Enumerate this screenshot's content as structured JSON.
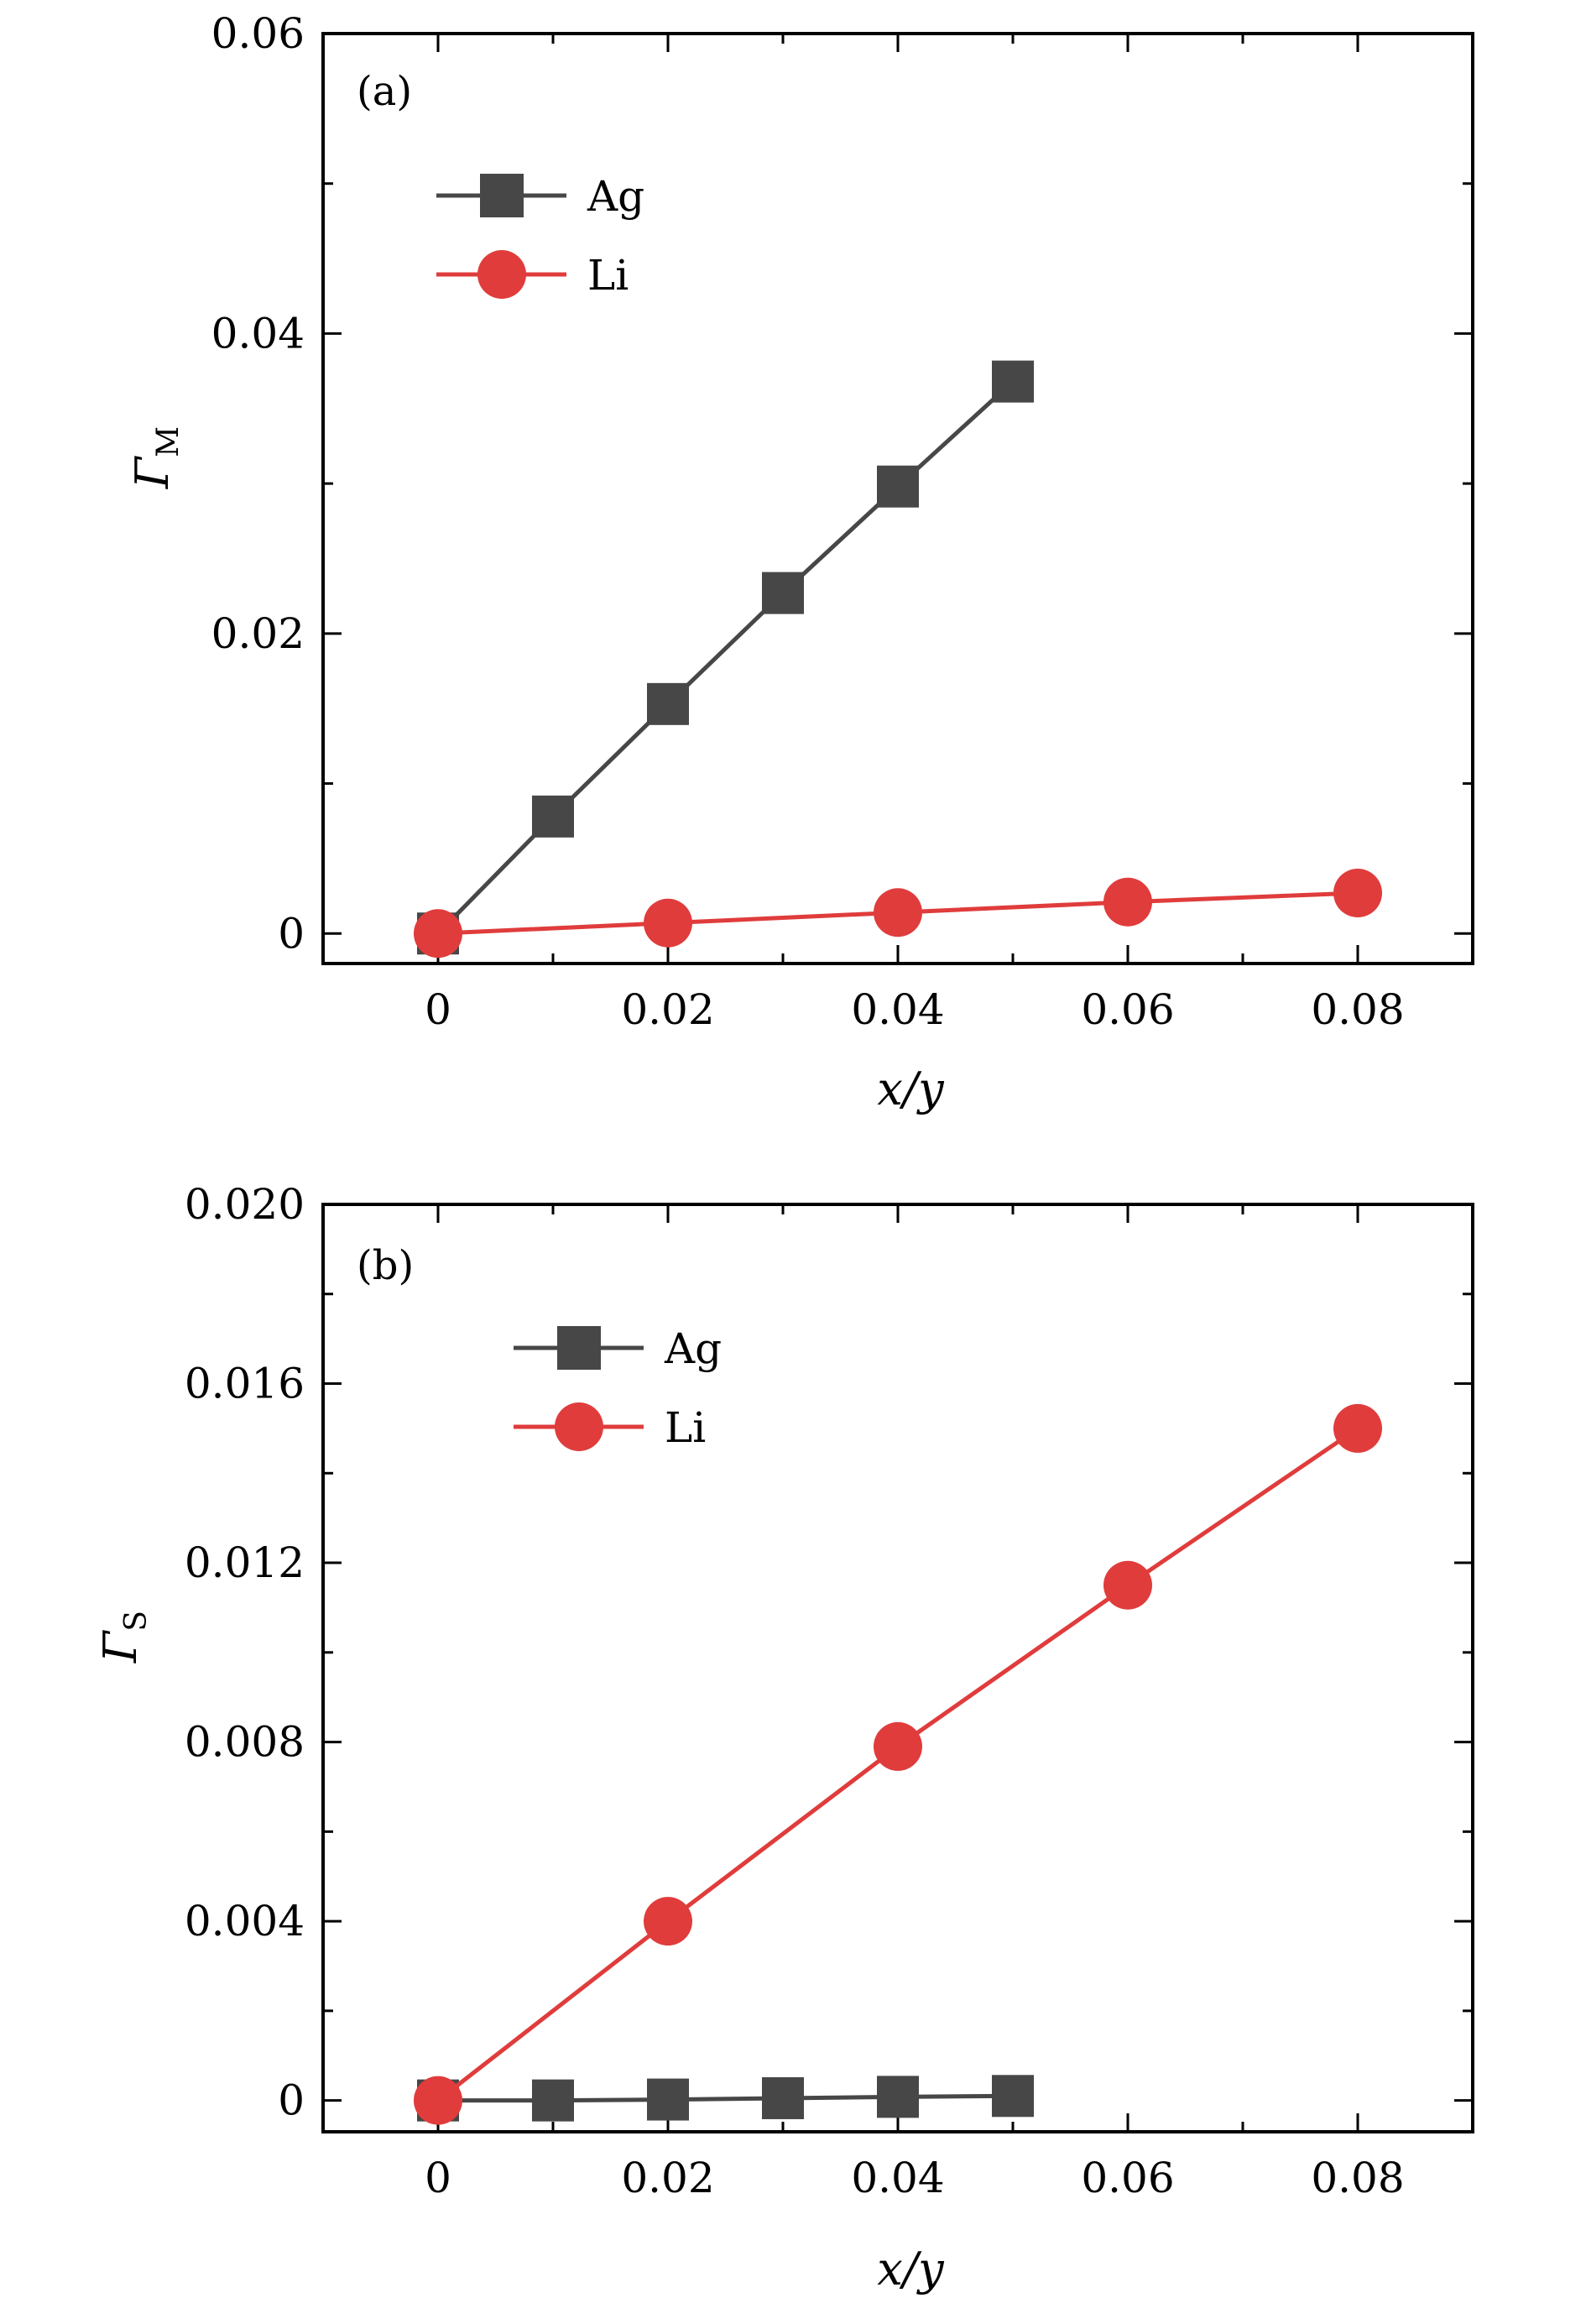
{
  "chart_data": [
    {
      "type": "line",
      "panel_label": "(a)",
      "xlabel": "x/y",
      "ylabel": "Γ",
      "ylabel_sub": "M",
      "xlim": [
        -0.01,
        0.09
      ],
      "ylim": [
        -0.002,
        0.06
      ],
      "xticks": [
        0,
        0.02,
        0.04,
        0.06,
        0.08
      ],
      "xtick_labels": [
        "0",
        "0.02",
        "0.04",
        "0.06",
        "0.08"
      ],
      "yticks": [
        0,
        0.02,
        0.04,
        0.06
      ],
      "ytick_labels": [
        "0",
        "0.02",
        "0.04",
        "0.06"
      ],
      "grid": false,
      "legend_position": "top-left",
      "series": [
        {
          "name": "Ag",
          "marker": "square",
          "color": "#474747",
          "x": [
            0,
            0.01,
            0.02,
            0.03,
            0.04,
            0.05
          ],
          "y": [
            0,
            0.0078,
            0.0153,
            0.0227,
            0.0298,
            0.0368
          ]
        },
        {
          "name": "Li",
          "marker": "circle",
          "color": "#e03c3c",
          "x": [
            0,
            0.02,
            0.04,
            0.06,
            0.08
          ],
          "y": [
            0,
            0.0007,
            0.0014,
            0.0021,
            0.0027
          ]
        }
      ]
    },
    {
      "type": "line",
      "panel_label": "(b)",
      "xlabel": "x/y",
      "ylabel": "Γ",
      "ylabel_sub": "S",
      "xlim": [
        -0.01,
        0.09
      ],
      "ylim": [
        -0.0007,
        0.02
      ],
      "xticks": [
        0,
        0.02,
        0.04,
        0.06,
        0.08
      ],
      "xtick_labels": [
        "0",
        "0.02",
        "0.04",
        "0.06",
        "0.08"
      ],
      "yticks": [
        0,
        0.004,
        0.008,
        0.012,
        0.016,
        0.02
      ],
      "ytick_labels": [
        "0",
        "0.004",
        "0.008",
        "0.012",
        "0.016",
        "0.020"
      ],
      "grid": false,
      "legend_position": "top-left",
      "series": [
        {
          "name": "Ag",
          "marker": "square",
          "color": "#474747",
          "x": [
            0,
            0.01,
            0.02,
            0.03,
            0.04,
            0.05
          ],
          "y": [
            0,
            0.0,
            2e-05,
            5e-05,
            8e-05,
            0.0001
          ]
        },
        {
          "name": "Li",
          "marker": "circle",
          "color": "#e03c3c",
          "x": [
            0,
            0.02,
            0.04,
            0.06,
            0.08
          ],
          "y": [
            0,
            0.004,
            0.0079,
            0.0115,
            0.015
          ]
        }
      ]
    }
  ]
}
